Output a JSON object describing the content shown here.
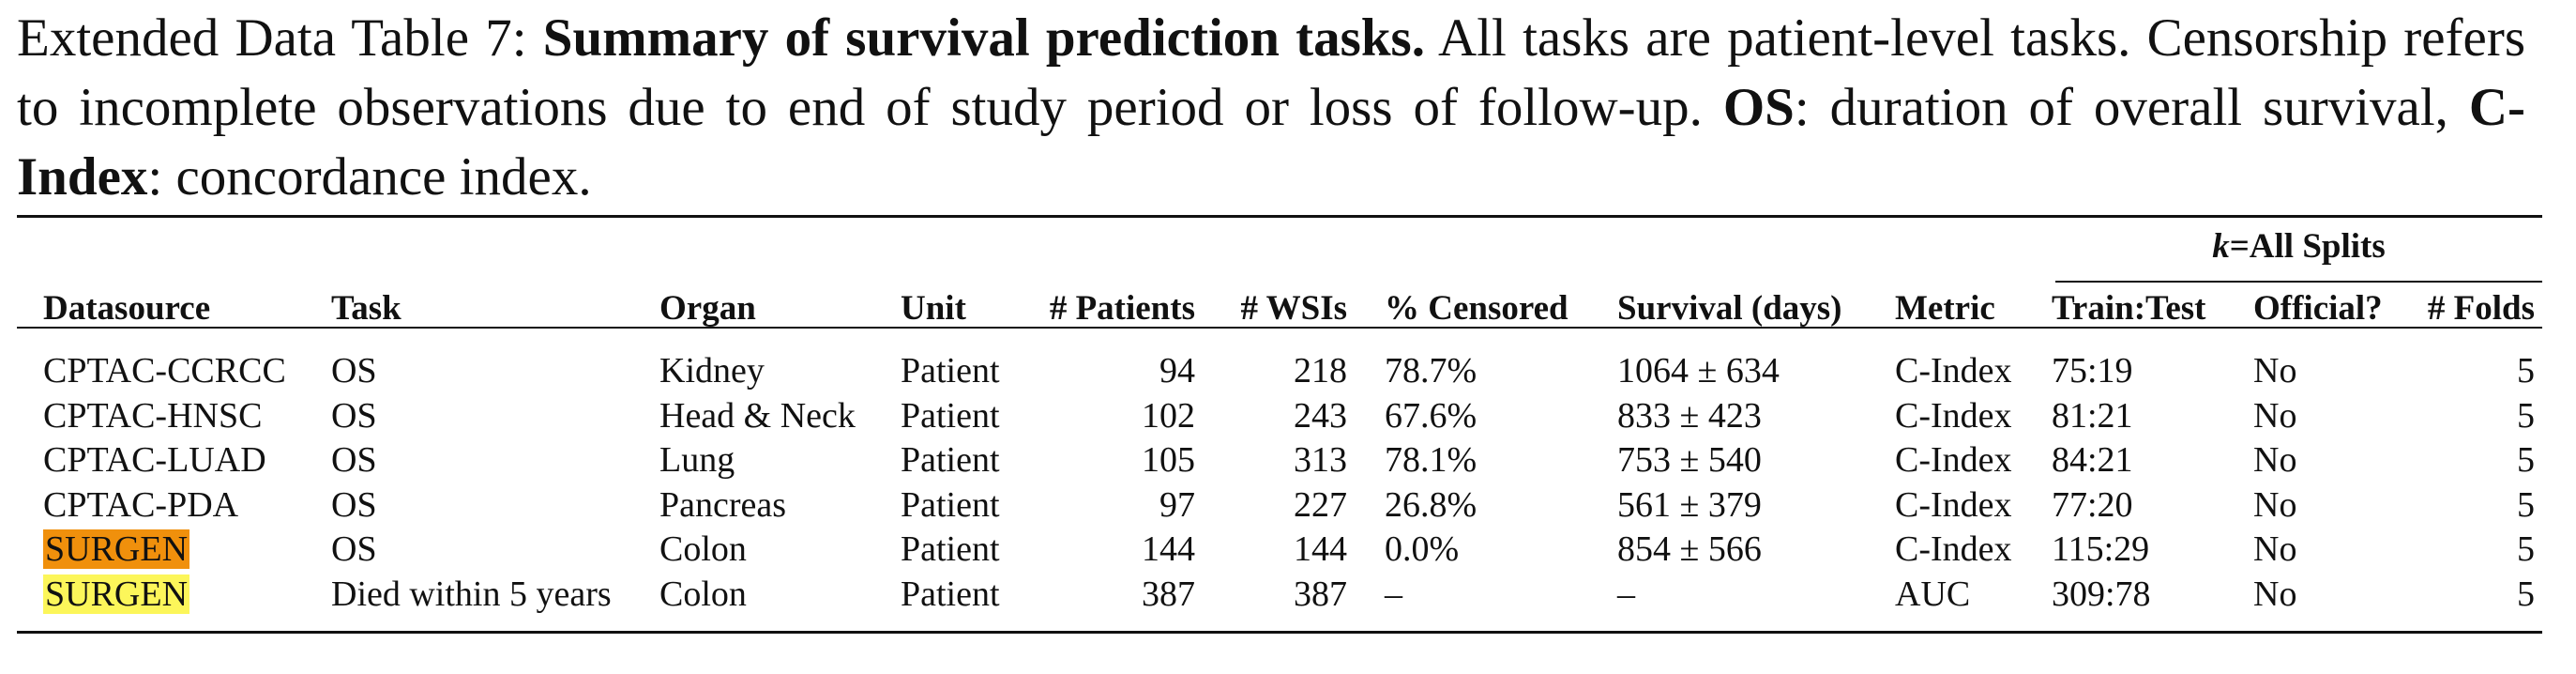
{
  "caption": {
    "label": "Extended Data Table 7:",
    "title": "Summary of survival prediction tasks.",
    "text1": "All tasks are patient-level tasks. Censorship refers to incomplete observations due to end of study period or loss of follow-up.",
    "os_abbr": "OS",
    "os_def": ": duration of overall survival,",
    "cindex_abbr": "C-Index",
    "cindex_def": ": concordance index."
  },
  "table": {
    "group_header": {
      "k": "k",
      "label": "=All Splits"
    },
    "headers": {
      "datasource": "Datasource",
      "task": "Task",
      "organ": "Organ",
      "unit": "Unit",
      "patients": "# Patients",
      "wsis": "# WSIs",
      "censored": "% Censored",
      "survival": "Survival (days)",
      "metric": "Metric",
      "train_test": "Train:Test",
      "official": "Official?",
      "folds": "# Folds"
    },
    "rows": [
      {
        "datasource": "CPTAC-CCRCC",
        "task": "OS",
        "organ": "Kidney",
        "unit": "Patient",
        "patients": "94",
        "wsis": "218",
        "censored": "78.7%",
        "survival": "1064 ± 634",
        "metric": "C-Index",
        "train_test": "75:19",
        "official": "No",
        "folds": "5"
      },
      {
        "datasource": "CPTAC-HNSC",
        "task": "OS",
        "organ": "Head & Neck",
        "unit": "Patient",
        "patients": "102",
        "wsis": "243",
        "censored": "67.6%",
        "survival": "833 ± 423",
        "metric": "C-Index",
        "train_test": "81:21",
        "official": "No",
        "folds": "5"
      },
      {
        "datasource": "CPTAC-LUAD",
        "task": "OS",
        "organ": "Lung",
        "unit": "Patient",
        "patients": "105",
        "wsis": "313",
        "censored": "78.1%",
        "survival": "753 ± 540",
        "metric": "C-Index",
        "train_test": "84:21",
        "official": "No",
        "folds": "5"
      },
      {
        "datasource": "CPTAC-PDA",
        "task": "OS",
        "organ": "Pancreas",
        "unit": "Patient",
        "patients": "97",
        "wsis": "227",
        "censored": "26.8%",
        "survival": "561 ± 379",
        "metric": "C-Index",
        "train_test": "77:20",
        "official": "No",
        "folds": "5"
      },
      {
        "datasource": "SURGEN",
        "task": "OS",
        "organ": "Colon",
        "unit": "Patient",
        "patients": "144",
        "wsis": "144",
        "censored": "0.0%",
        "survival": "854 ± 566",
        "metric": "C-Index",
        "train_test": "115:29",
        "official": "No",
        "folds": "5",
        "highlight": "#f0900c"
      },
      {
        "datasource": "SURGEN",
        "task": "Died within 5 years",
        "organ": "Colon",
        "unit": "Patient",
        "patients": "387",
        "wsis": "387",
        "censored": "–",
        "survival": "–",
        "metric": "AUC",
        "train_test": "309:78",
        "official": "No",
        "folds": "5",
        "highlight": "#fcf65a"
      }
    ]
  }
}
